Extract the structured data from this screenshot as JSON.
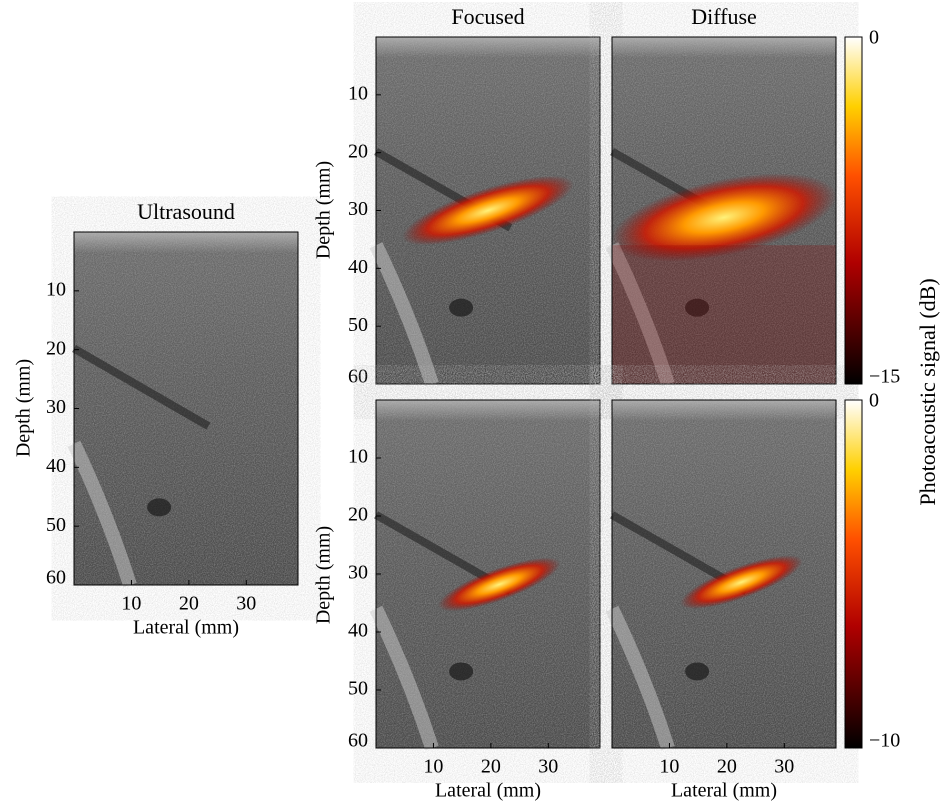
{
  "panels": [
    {
      "title": "Ultrasound",
      "ylabel": "Depth (mm)",
      "xlabel": "Lateral (mm)",
      "ylim": [
        0,
        60
      ],
      "yticks": [
        10,
        20,
        30,
        40,
        50,
        60
      ],
      "xlim": [
        0,
        39
      ],
      "xticks": [
        10,
        20,
        30
      ]
    },
    {
      "title": "Focused",
      "ylabel": "Depth (mm)",
      "ylim": [
        0,
        60
      ],
      "yticks": [
        10,
        20,
        30,
        40,
        50,
        60
      ]
    },
    {
      "title": "Diffuse"
    },
    {
      "ylabel": "Depth (mm)",
      "xlabel": "Lateral (mm)",
      "ylim": [
        0,
        60
      ],
      "yticks": [
        10,
        20,
        30,
        40,
        50,
        60
      ],
      "xlim": [
        0,
        39
      ],
      "xticks": [
        10,
        20,
        30
      ]
    },
    {
      "xlabel": "Lateral (mm)",
      "xlim": [
        0,
        39
      ],
      "xticks": [
        10,
        20,
        30
      ]
    }
  ],
  "colorbars": [
    {
      "ylim": [
        -15,
        0
      ],
      "ticks": [
        0,
        {
          "value": -15,
          "label": "−15"
        }
      ]
    },
    {
      "ylim": [
        -10,
        0
      ],
      "ticks": [
        0,
        {
          "value": -10,
          "label": "−10"
        }
      ]
    }
  ],
  "colorbar_label": "Photoacoustic signal (dB)"
}
